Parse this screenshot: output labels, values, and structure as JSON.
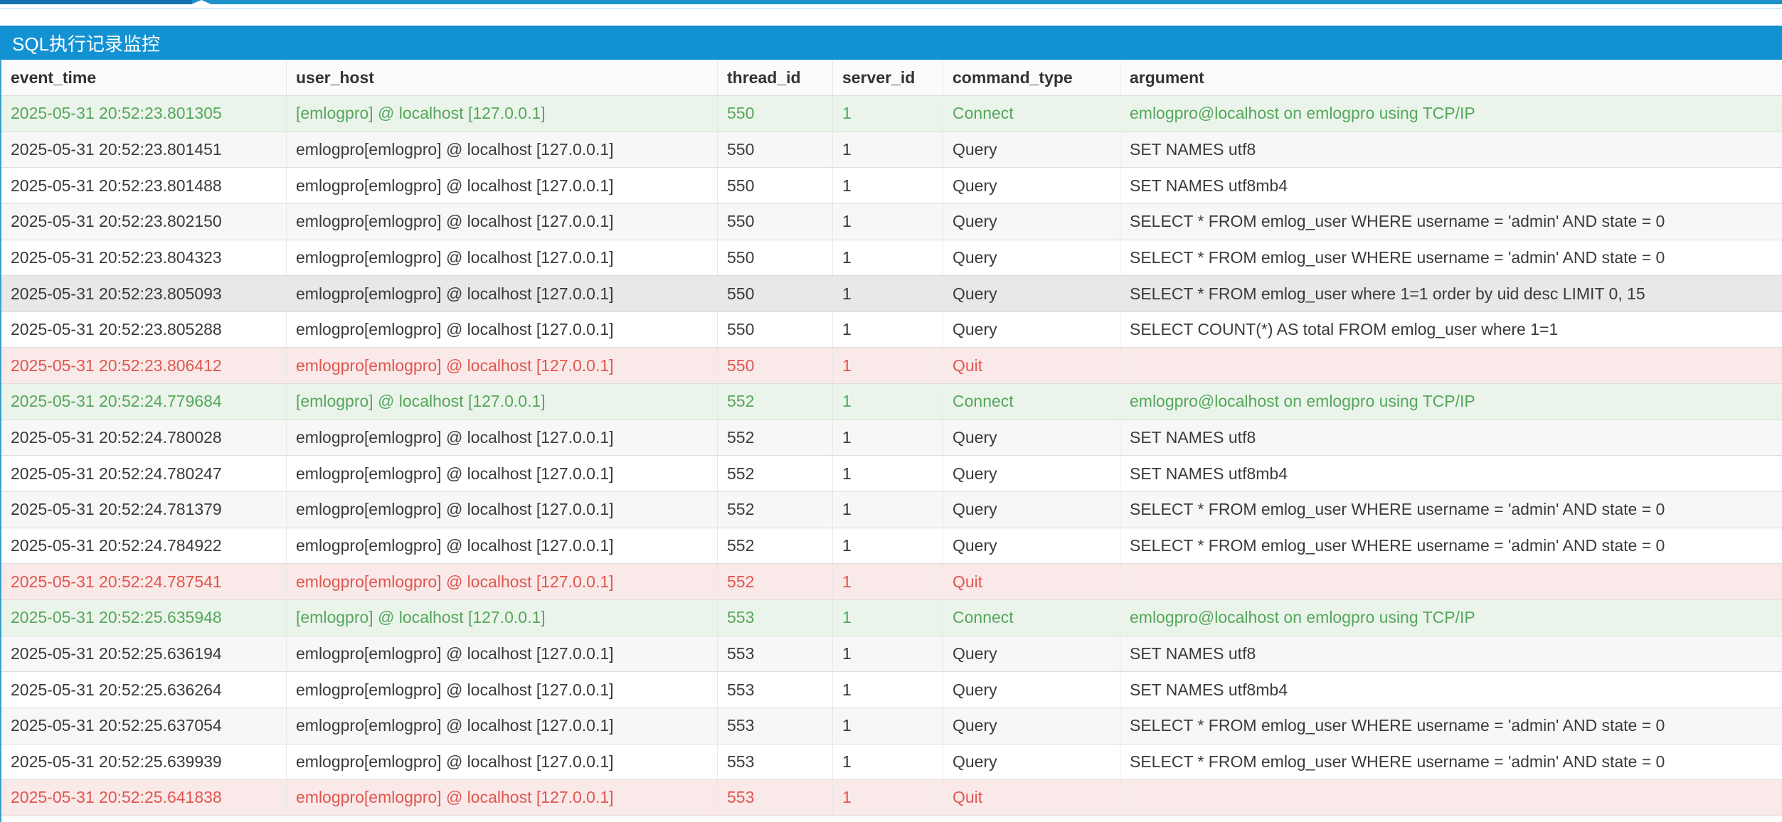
{
  "panel": {
    "title": "SQL执行记录监控"
  },
  "colors": {
    "titlebar_blue": "#1292d3",
    "topbar_blue_left": "#1273ad",
    "topbar_blue_right": "#1b90cb",
    "top_divider_blue": "#d8ecf8",
    "table_left_border": "#3a9fc9",
    "connect_row_bg": "#ebf4ea",
    "connect_text": "#54a75c",
    "quit_row_bg": "#fae9e9",
    "quit_text": "#e0564e",
    "stripe_bg": "#f7f7f7",
    "hover_bg": "#e8e8e8",
    "row_border": "#dddddd",
    "body_text": "#3a3a3a"
  },
  "table": {
    "columns": [
      {
        "key": "event_time",
        "label": "event_time"
      },
      {
        "key": "user_host",
        "label": "user_host"
      },
      {
        "key": "thread_id",
        "label": "thread_id"
      },
      {
        "key": "server_id",
        "label": "server_id"
      },
      {
        "key": "command_type",
        "label": "command_type"
      },
      {
        "key": "argument",
        "label": "argument"
      }
    ],
    "rows": [
      {
        "event_time": "2025-05-31 20:52:23.801305",
        "user_host": "[emlogpro] @ localhost [127.0.0.1]",
        "thread_id": "550",
        "server_id": "1",
        "command_type": "Connect",
        "argument": "emlogpro@localhost on emlogpro using TCP/IP",
        "type": "connect",
        "hovered": false
      },
      {
        "event_time": "2025-05-31 20:52:23.801451",
        "user_host": "emlogpro[emlogpro] @ localhost [127.0.0.1]",
        "thread_id": "550",
        "server_id": "1",
        "command_type": "Query",
        "argument": "SET NAMES utf8",
        "type": "query",
        "hovered": false
      },
      {
        "event_time": "2025-05-31 20:52:23.801488",
        "user_host": "emlogpro[emlogpro] @ localhost [127.0.0.1]",
        "thread_id": "550",
        "server_id": "1",
        "command_type": "Query",
        "argument": "SET NAMES utf8mb4",
        "type": "query",
        "hovered": false
      },
      {
        "event_time": "2025-05-31 20:52:23.802150",
        "user_host": "emlogpro[emlogpro] @ localhost [127.0.0.1]",
        "thread_id": "550",
        "server_id": "1",
        "command_type": "Query",
        "argument": "SELECT * FROM emlog_user WHERE username = 'admin' AND state = 0",
        "type": "query",
        "hovered": false
      },
      {
        "event_time": "2025-05-31 20:52:23.804323",
        "user_host": "emlogpro[emlogpro] @ localhost [127.0.0.1]",
        "thread_id": "550",
        "server_id": "1",
        "command_type": "Query",
        "argument": "SELECT * FROM emlog_user WHERE username = 'admin' AND state = 0",
        "type": "query",
        "hovered": false
      },
      {
        "event_time": "2025-05-31 20:52:23.805093",
        "user_host": "emlogpro[emlogpro] @ localhost [127.0.0.1]",
        "thread_id": "550",
        "server_id": "1",
        "command_type": "Query",
        "argument": "SELECT * FROM emlog_user where 1=1 order by uid desc LIMIT 0, 15",
        "type": "query",
        "hovered": true
      },
      {
        "event_time": "2025-05-31 20:52:23.805288",
        "user_host": "emlogpro[emlogpro] @ localhost [127.0.0.1]",
        "thread_id": "550",
        "server_id": "1",
        "command_type": "Query",
        "argument": "SELECT COUNT(*) AS total FROM emlog_user where 1=1",
        "type": "query",
        "hovered": false
      },
      {
        "event_time": "2025-05-31 20:52:23.806412",
        "user_host": "emlogpro[emlogpro] @ localhost [127.0.0.1]",
        "thread_id": "550",
        "server_id": "1",
        "command_type": "Quit",
        "argument": "",
        "type": "quit",
        "hovered": false
      },
      {
        "event_time": "2025-05-31 20:52:24.779684",
        "user_host": "[emlogpro] @ localhost [127.0.0.1]",
        "thread_id": "552",
        "server_id": "1",
        "command_type": "Connect",
        "argument": "emlogpro@localhost on emlogpro using TCP/IP",
        "type": "connect",
        "hovered": false
      },
      {
        "event_time": "2025-05-31 20:52:24.780028",
        "user_host": "emlogpro[emlogpro] @ localhost [127.0.0.1]",
        "thread_id": "552",
        "server_id": "1",
        "command_type": "Query",
        "argument": "SET NAMES utf8",
        "type": "query",
        "hovered": false
      },
      {
        "event_time": "2025-05-31 20:52:24.780247",
        "user_host": "emlogpro[emlogpro] @ localhost [127.0.0.1]",
        "thread_id": "552",
        "server_id": "1",
        "command_type": "Query",
        "argument": "SET NAMES utf8mb4",
        "type": "query",
        "hovered": false
      },
      {
        "event_time": "2025-05-31 20:52:24.781379",
        "user_host": "emlogpro[emlogpro] @ localhost [127.0.0.1]",
        "thread_id": "552",
        "server_id": "1",
        "command_type": "Query",
        "argument": "SELECT * FROM emlog_user WHERE username = 'admin' AND state = 0",
        "type": "query",
        "hovered": false
      },
      {
        "event_time": "2025-05-31 20:52:24.784922",
        "user_host": "emlogpro[emlogpro] @ localhost [127.0.0.1]",
        "thread_id": "552",
        "server_id": "1",
        "command_type": "Query",
        "argument": "SELECT * FROM emlog_user WHERE username = 'admin' AND state = 0",
        "type": "query",
        "hovered": false
      },
      {
        "event_time": "2025-05-31 20:52:24.787541",
        "user_host": "emlogpro[emlogpro] @ localhost [127.0.0.1]",
        "thread_id": "552",
        "server_id": "1",
        "command_type": "Quit",
        "argument": "",
        "type": "quit",
        "hovered": false
      },
      {
        "event_time": "2025-05-31 20:52:25.635948",
        "user_host": "[emlogpro] @ localhost [127.0.0.1]",
        "thread_id": "553",
        "server_id": "1",
        "command_type": "Connect",
        "argument": "emlogpro@localhost on emlogpro using TCP/IP",
        "type": "connect",
        "hovered": false
      },
      {
        "event_time": "2025-05-31 20:52:25.636194",
        "user_host": "emlogpro[emlogpro] @ localhost [127.0.0.1]",
        "thread_id": "553",
        "server_id": "1",
        "command_type": "Query",
        "argument": "SET NAMES utf8",
        "type": "query",
        "hovered": false
      },
      {
        "event_time": "2025-05-31 20:52:25.636264",
        "user_host": "emlogpro[emlogpro] @ localhost [127.0.0.1]",
        "thread_id": "553",
        "server_id": "1",
        "command_type": "Query",
        "argument": "SET NAMES utf8mb4",
        "type": "query",
        "hovered": false
      },
      {
        "event_time": "2025-05-31 20:52:25.637054",
        "user_host": "emlogpro[emlogpro] @ localhost [127.0.0.1]",
        "thread_id": "553",
        "server_id": "1",
        "command_type": "Query",
        "argument": "SELECT * FROM emlog_user WHERE username = 'admin' AND state = 0",
        "type": "query",
        "hovered": false
      },
      {
        "event_time": "2025-05-31 20:52:25.639939",
        "user_host": "emlogpro[emlogpro] @ localhost [127.0.0.1]",
        "thread_id": "553",
        "server_id": "1",
        "command_type": "Query",
        "argument": "SELECT * FROM emlog_user WHERE username = 'admin' AND state = 0",
        "type": "query",
        "hovered": false
      },
      {
        "event_time": "2025-05-31 20:52:25.641838",
        "user_host": "emlogpro[emlogpro] @ localhost [127.0.0.1]",
        "thread_id": "553",
        "server_id": "1",
        "command_type": "Quit",
        "argument": "",
        "type": "quit",
        "hovered": false
      }
    ]
  }
}
